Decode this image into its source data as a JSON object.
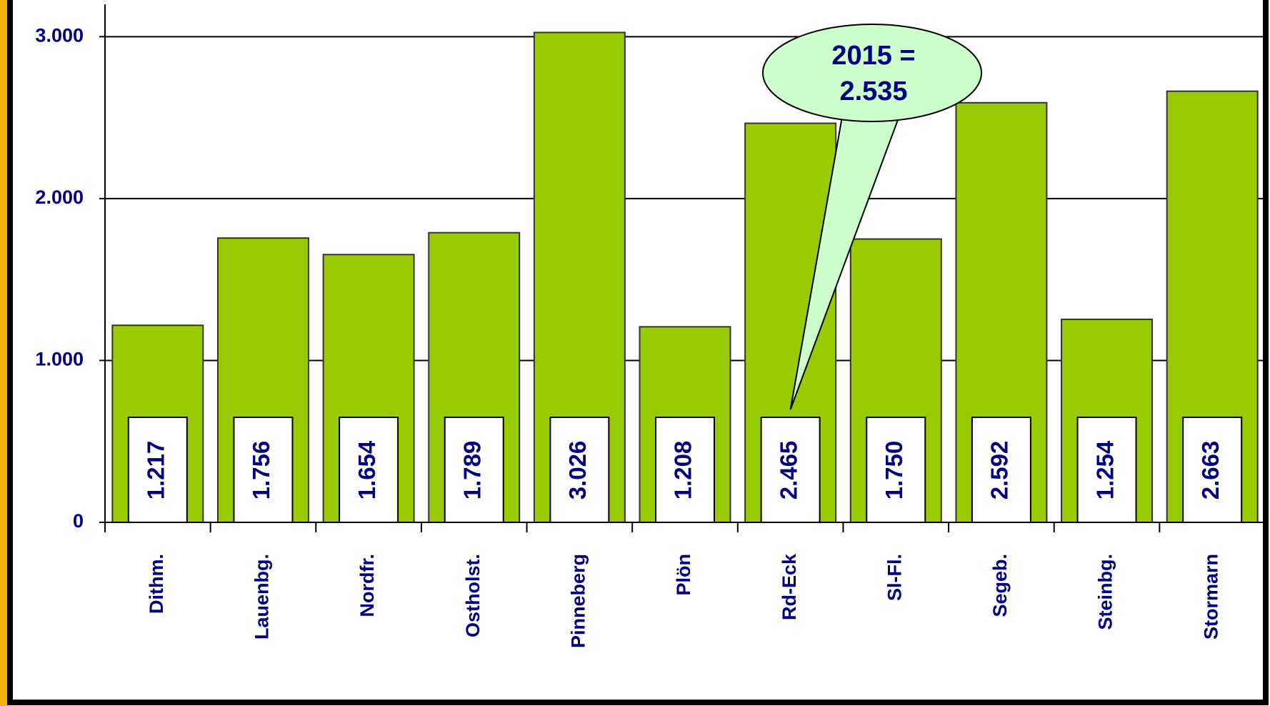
{
  "chart_data": {
    "type": "bar",
    "categories": [
      "Dithm.",
      "Lauenbg.",
      "Nordfr.",
      "Ostholst.",
      "Pinneberg",
      "Plön",
      "Rd-Eck",
      "Sl-Fl.",
      "Segeb.",
      "Steinbg.",
      "Stormarn"
    ],
    "values": [
      1217,
      1756,
      1654,
      1789,
      3026,
      1208,
      2465,
      1750,
      2592,
      1254,
      2663
    ],
    "value_labels": [
      "1.217",
      "1.756",
      "1.654",
      "1.789",
      "3.026",
      "1.208",
      "2.465",
      "1.750",
      "2.592",
      "1.254",
      "2.663"
    ],
    "color": "#99cc00",
    "ylim": [
      0,
      3200
    ],
    "yticks": [
      0,
      {
        "value": 1000,
        "label": "1.000"
      },
      {
        "value": 2000,
        "label": "2.000"
      },
      {
        "value": 3000,
        "label": "3.000"
      }
    ],
    "grid": true,
    "annotation": {
      "lines": [
        "2015 =",
        "2.535"
      ],
      "category": 6
    }
  }
}
